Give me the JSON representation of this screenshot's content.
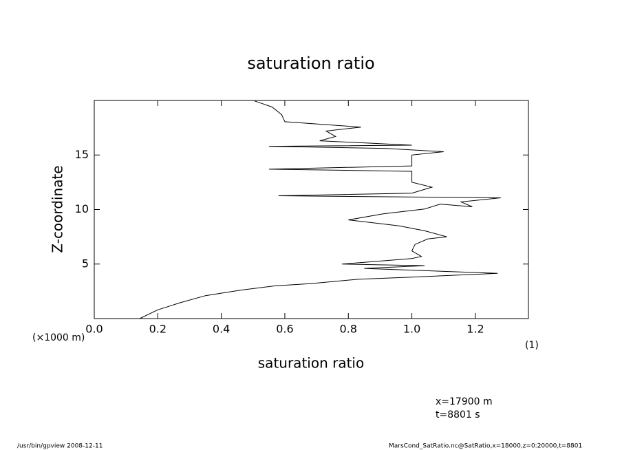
{
  "chart_data": {
    "type": "line",
    "title": "saturation ratio",
    "xlabel": "saturation ratio",
    "ylabel": "Z-coordinate",
    "yunit": "(×1000 m)",
    "xunit": "(1)",
    "annotations": [
      "x=17900 m",
      "t=8801 s"
    ],
    "footer_left": "/usr/bin/gpview   2008-12-11",
    "footer_right": "MarsCond_SatRatio.nc@SatRatio,x=18000,z=0:20000,t=8801",
    "color": "#000000",
    "values": [
      0.143,
      0.2,
      0.27,
      0.35,
      0.46,
      0.57,
      0.68,
      0.83,
      1.0,
      1.27,
      0.85,
      1.04,
      0.78,
      1.0,
      1.03,
      1.0,
      1.01,
      1.05,
      1.11,
      1.04,
      0.96,
      0.8,
      0.91,
      1.04,
      1.09,
      1.19,
      1.155,
      1.28,
      0.58,
      1.0,
      1.063,
      1.0,
      1.0,
      0.55,
      1.0,
      1.0,
      1.1,
      0.92,
      0.55,
      1.0,
      0.71,
      0.76,
      0.73,
      0.84,
      0.6,
      0.59,
      0.56,
      0.505
    ],
    "z": [
      0,
      0.8,
      1.45,
      2.1,
      2.6,
      3.0,
      3.2,
      3.6,
      3.8,
      4.15,
      4.6,
      4.85,
      5.0,
      5.5,
      5.7,
      6.2,
      6.8,
      7.3,
      7.5,
      8.05,
      8.5,
      9.05,
      9.6,
      10.05,
      10.5,
      10.25,
      10.7,
      11.07,
      11.26,
      11.5,
      12.05,
      12.5,
      13.5,
      13.7,
      14.0,
      15.0,
      15.3,
      15.6,
      15.8,
      15.9,
      16.3,
      16.7,
      17.2,
      17.55,
      18.05,
      18.7,
      19.4,
      19.95
    ],
    "xlim": [
      0,
      1.367
    ],
    "ylim": [
      0,
      20
    ],
    "xticks": [
      {
        "value": 0,
        "label": "0.0"
      },
      0.2,
      0.4,
      0.6,
      0.8,
      {
        "value": 1,
        "label": "1.0"
      },
      1.2
    ],
    "yticks": [
      5,
      10,
      15
    ]
  }
}
